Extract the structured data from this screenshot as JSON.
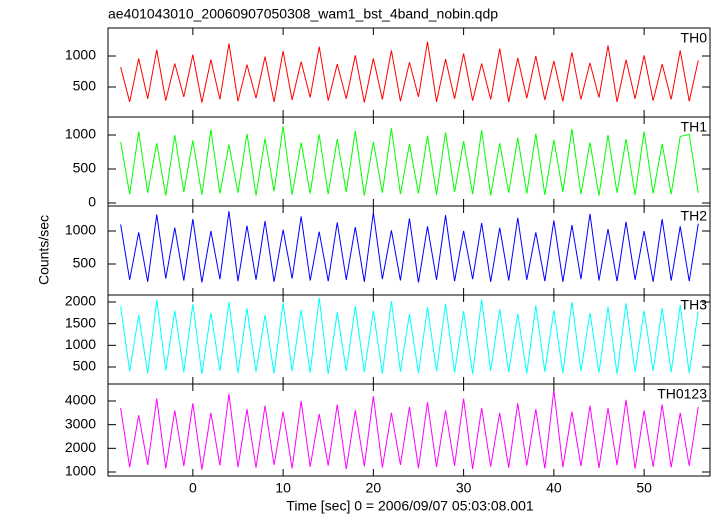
{
  "chart_data": [
    {
      "type": "line",
      "title": "ae401043010_20060907050308_wam1_bst_4band_nobin.qdp",
      "label": "TH0",
      "xlim": [
        -9.4,
        57.3
      ],
      "ylim": [
        16,
        1452
      ],
      "yticks": [
        500,
        1000
      ],
      "x": [
        -8,
        -7,
        -6,
        -5,
        -4,
        -3,
        -2,
        -1,
        0,
        1,
        2,
        3,
        4,
        5,
        6,
        7,
        8,
        9,
        10,
        11,
        12,
        13,
        14,
        15,
        16,
        17,
        18,
        19,
        20,
        21,
        22,
        23,
        24,
        25,
        26,
        27,
        28,
        29,
        30,
        31,
        32,
        33,
        34,
        35,
        36,
        37,
        38,
        39,
        40,
        41,
        42,
        43,
        44,
        45,
        46,
        47,
        48,
        49,
        50,
        51,
        52,
        53,
        54,
        55,
        56
      ],
      "series": [
        {
          "name": "TH0",
          "color": "#ff0000",
          "values": [
            820,
            260,
            960,
            310,
            1100,
            280,
            880,
            340,
            1020,
            250,
            940,
            300,
            1200,
            270,
            860,
            320,
            990,
            260,
            1080,
            290,
            910,
            330,
            1150,
            280,
            870,
            310,
            1010,
            250,
            960,
            300,
            1090,
            270,
            900,
            340,
            1230,
            260,
            950,
            310,
            1040,
            280,
            880,
            300,
            1120,
            260,
            970,
            320,
            1000,
            290,
            920,
            270,
            1060,
            300,
            890,
            330,
            1170,
            260,
            940,
            310,
            1010,
            280,
            870,
            300,
            1090,
            270,
            930
          ]
        }
      ]
    },
    {
      "type": "line",
      "label": "TH1",
      "xlim": [
        -9.4,
        57.3
      ],
      "ylim": [
        -44,
        1265
      ],
      "yticks": [
        0,
        500,
        1000
      ],
      "x": [
        -8,
        -7,
        -6,
        -5,
        -4,
        -3,
        -2,
        -1,
        0,
        1,
        2,
        3,
        4,
        5,
        6,
        7,
        8,
        9,
        10,
        11,
        12,
        13,
        14,
        15,
        16,
        17,
        18,
        19,
        20,
        21,
        22,
        23,
        24,
        25,
        26,
        27,
        28,
        29,
        30,
        31,
        32,
        33,
        34,
        35,
        36,
        37,
        38,
        39,
        40,
        41,
        42,
        43,
        44,
        45,
        46,
        47,
        48,
        49,
        50,
        51,
        52,
        53,
        54,
        55,
        56
      ],
      "series": [
        {
          "name": "TH1",
          "color": "#00ff00",
          "values": [
            900,
            130,
            1050,
            150,
            880,
            110,
            1000,
            160,
            920,
            120,
            1080,
            140,
            860,
            150,
            1020,
            110,
            950,
            170,
            1130,
            120,
            890,
            140,
            1010,
            130,
            940,
            160,
            1060,
            110,
            900,
            150,
            1100,
            130,
            870,
            140,
            990,
            120,
            1040,
            160,
            910,
            130,
            1070,
            110,
            880,
            150,
            960,
            140,
            1020,
            120,
            930,
            160,
            1090,
            130,
            890,
            110,
            1000,
            150,
            940,
            120,
            1050,
            140,
            870,
            130,
            980,
            1010,
            150
          ]
        }
      ]
    },
    {
      "type": "line",
      "label": "TH2",
      "y_label": "Counts/sec",
      "xlim": [
        -9.4,
        57.3
      ],
      "ylim": [
        30,
        1379
      ],
      "yticks": [
        500,
        1000
      ],
      "x": [
        -8,
        -7,
        -6,
        -5,
        -4,
        -3,
        -2,
        -1,
        0,
        1,
        2,
        3,
        4,
        5,
        6,
        7,
        8,
        9,
        10,
        11,
        12,
        13,
        14,
        15,
        16,
        17,
        18,
        19,
        20,
        21,
        22,
        23,
        24,
        25,
        26,
        27,
        28,
        29,
        30,
        31,
        32,
        33,
        34,
        35,
        36,
        37,
        38,
        39,
        40,
        41,
        42,
        43,
        44,
        45,
        46,
        47,
        48,
        49,
        50,
        51,
        52,
        53,
        54,
        55,
        56
      ],
      "series": [
        {
          "name": "TH2",
          "color": "#0000ff",
          "values": [
            1100,
            260,
            980,
            230,
            1250,
            280,
            1050,
            250,
            1180,
            220,
            1000,
            270,
            1300,
            240,
            1080,
            260,
            1150,
            230,
            1020,
            280,
            1220,
            250,
            990,
            240,
            1130,
            260,
            1060,
            230,
            1280,
            270,
            1010,
            250,
            1190,
            220,
            1070,
            260,
            1240,
            240,
            1000,
            270,
            1120,
            230,
            1050,
            250,
            1200,
            260,
            980,
            240,
            1160,
            230,
            1090,
            270,
            1260,
            250,
            1030,
            240,
            1140,
            260,
            1000,
            230,
            1180,
            250,
            1070,
            240,
            1110
          ]
        }
      ]
    },
    {
      "type": "line",
      "label": "TH3",
      "xlim": [
        -9.4,
        57.3
      ],
      "ylim": [
        108,
        2161
      ],
      "yticks": [
        500,
        1000,
        1500,
        2000
      ],
      "x": [
        -8,
        -7,
        -6,
        -5,
        -4,
        -3,
        -2,
        -1,
        0,
        1,
        2,
        3,
        4,
        5,
        6,
        7,
        8,
        9,
        10,
        11,
        12,
        13,
        14,
        15,
        16,
        17,
        18,
        19,
        20,
        21,
        22,
        23,
        24,
        25,
        26,
        27,
        28,
        29,
        30,
        31,
        32,
        33,
        34,
        35,
        36,
        37,
        38,
        39,
        40,
        41,
        42,
        43,
        44,
        45,
        46,
        47,
        48,
        49,
        50,
        51,
        52,
        53,
        54,
        55,
        56
      ],
      "series": [
        {
          "name": "TH3",
          "color": "#00ffff",
          "values": [
            1900,
            400,
            1700,
            350,
            2050,
            420,
            1800,
            380,
            1950,
            340,
            1750,
            410,
            2000,
            360,
            1850,
            390,
            1700,
            350,
            1980,
            400,
            1820,
            370,
            2100,
            340,
            1760,
            410,
            1900,
            380,
            1800,
            350,
            2020,
            390,
            1720,
            360,
            1880,
            400,
            1960,
            370,
            1790,
            340,
            2060,
            410,
            1840,
            380,
            1730,
            350,
            1920,
            390,
            1810,
            360,
            2000,
            400,
            1750,
            370,
            1890,
            340,
            1970,
            380,
            1800,
            410,
            1860,
            380,
            1930,
            360,
            1780
          ]
        }
      ]
    },
    {
      "type": "line",
      "label": "TH0123",
      "x_label": "Time [sec] 0 = 2006/09/07 05:03:08.001",
      "xlim": [
        -9.4,
        57.3
      ],
      "ylim": [
        831,
        4717
      ],
      "yticks": [
        1000,
        2000,
        3000,
        4000
      ],
      "xticks": [
        0,
        10,
        20,
        30,
        40,
        50
      ],
      "x": [
        -8,
        -7,
        -6,
        -5,
        -4,
        -3,
        -2,
        -1,
        0,
        1,
        2,
        3,
        4,
        5,
        6,
        7,
        8,
        9,
        10,
        11,
        12,
        13,
        14,
        15,
        16,
        17,
        18,
        19,
        20,
        21,
        22,
        23,
        24,
        25,
        26,
        27,
        28,
        29,
        30,
        31,
        32,
        33,
        34,
        35,
        36,
        37,
        38,
        39,
        40,
        41,
        42,
        43,
        44,
        45,
        46,
        47,
        48,
        49,
        50,
        51,
        52,
        53,
        54,
        55,
        56
      ],
      "series": [
        {
          "name": "TH0123",
          "color": "#ff00ff",
          "values": [
            3700,
            1200,
            3400,
            1300,
            4100,
            1150,
            3600,
            1250,
            3900,
            1100,
            3500,
            1280,
            4300,
            1200,
            3650,
            1180,
            3800,
            1300,
            3550,
            1150,
            4000,
            1220,
            3450,
            1270,
            3850,
            1120,
            3600,
            1240,
            4200,
            1190,
            3500,
            1300,
            3750,
            1160,
            3950,
            1210,
            3600,
            1260,
            4100,
            1130,
            3700,
            1230,
            3500,
            1180,
            3900,
            1270,
            3650,
            1150,
            4450,
            1200,
            3550,
            1250,
            3800,
            1170,
            3700,
            1290,
            4050,
            1140,
            3600,
            1220,
            3850,
            1200,
            3500,
            1260,
            3750
          ]
        }
      ]
    }
  ]
}
